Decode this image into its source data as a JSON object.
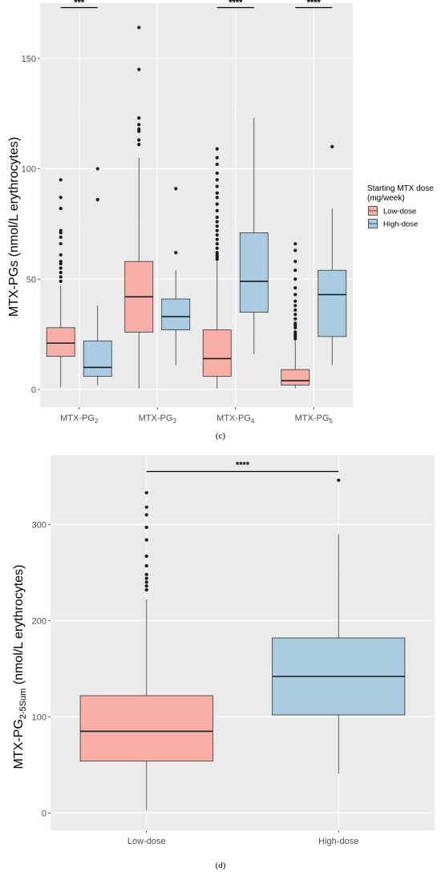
{
  "colors": {
    "low": "#F8AFA8",
    "high": "#A9CCE3",
    "panel_bg": "#EBEBEB",
    "grid_major": "#FFFFFF",
    "grid_minor": "#F4F4F4",
    "outline": "#333333"
  },
  "chart_data": [
    {
      "type": "boxplot",
      "panel_label": "(c)",
      "ylabel": "MTX-PGs (nmol/L erythrocytes)",
      "ylim": [
        -8,
        175
      ],
      "yticks": [
        "0",
        "50",
        "100",
        "150"
      ],
      "grid": true,
      "legend": {
        "placement": "right",
        "title_line1": "Starting MTX dose",
        "title_line2": "(mg/week)",
        "entries": [
          "Low-dose",
          "High-dose"
        ]
      },
      "categories": [
        {
          "base": "MTX-PG",
          "sub": "2"
        },
        {
          "base": "MTX-PG",
          "sub": "3"
        },
        {
          "base": "MTX-PG",
          "sub": "4"
        },
        {
          "base": "MTX-PG",
          "sub": "5"
        }
      ],
      "series": [
        {
          "name": "Low-dose",
          "boxes": [
            {
              "min": 1,
              "q1": 15,
              "median": 21,
              "q3": 28,
              "max": 47,
              "outliers": [
                49,
                51,
                53,
                55,
                57,
                58,
                61,
                66,
                69,
                71,
                72,
                82,
                87,
                95
              ]
            },
            {
              "min": 0.5,
              "q1": 26,
              "median": 42,
              "q3": 58,
              "max": 105,
              "outliers": [
                111,
                113,
                117,
                118,
                120,
                123,
                145,
                164
              ]
            },
            {
              "min": 0.5,
              "q1": 6,
              "median": 14,
              "q3": 27,
              "max": 58,
              "outliers": [
                59,
                60,
                61,
                62,
                64,
                66,
                68,
                70,
                72,
                74,
                76,
                78,
                81,
                84,
                87,
                89,
                92,
                95,
                98,
                102,
                105,
                109
              ]
            },
            {
              "min": 0.5,
              "q1": 2,
              "median": 4,
              "q3": 9,
              "max": 22,
              "outliers": [
                23,
                24,
                25,
                26,
                28,
                29,
                30,
                32,
                34,
                36,
                38,
                40,
                43,
                46,
                50,
                54,
                58,
                63,
                66
              ]
            }
          ]
        },
        {
          "name": "High-dose",
          "boxes": [
            {
              "min": 2,
              "q1": 6,
              "median": 10,
              "q3": 22,
              "max": 38,
              "outliers": [
                86,
                100
              ]
            },
            {
              "min": 11,
              "q1": 27,
              "median": 33,
              "q3": 41,
              "max": 54,
              "outliers": [
                62,
                91
              ]
            },
            {
              "min": 16,
              "q1": 35,
              "median": 49,
              "q3": 71,
              "max": 123,
              "outliers": []
            },
            {
              "min": 11,
              "q1": 24,
              "median": 43,
              "q3": 54,
              "max": 82,
              "outliers": [
                110
              ]
            }
          ]
        }
      ],
      "annotations": [
        {
          "text": "***",
          "category_index": 0,
          "y": 173
        },
        {
          "text": "****",
          "category_index": 2,
          "y": 173
        },
        {
          "text": "****",
          "category_index": 3,
          "y": 173
        }
      ]
    },
    {
      "type": "boxplot",
      "panel_label": "(d)",
      "ylabel_main": "MTX-PG",
      "ylabel_sub": "2-5Sum",
      "ylabel_rest": " (nmol/L erythrocytes)",
      "ylim": [
        -18,
        372
      ],
      "yticks": [
        "0",
        "100",
        "200",
        "300"
      ],
      "grid": true,
      "categories": [
        "Low-dose",
        "High-dose"
      ],
      "boxes": [
        {
          "name": "Low-dose",
          "min": 3,
          "q1": 54,
          "median": 85,
          "q3": 122,
          "max": 222,
          "outliers": [
            232,
            236,
            240,
            244,
            248,
            257,
            267,
            284,
            297,
            310,
            318,
            333
          ]
        },
        {
          "name": "High-dose",
          "min": 41,
          "q1": 102,
          "median": 142,
          "q3": 182,
          "max": 290,
          "outliers": [
            346
          ]
        }
      ],
      "annotations": [
        {
          "text": "****",
          "y": 355
        }
      ]
    }
  ]
}
